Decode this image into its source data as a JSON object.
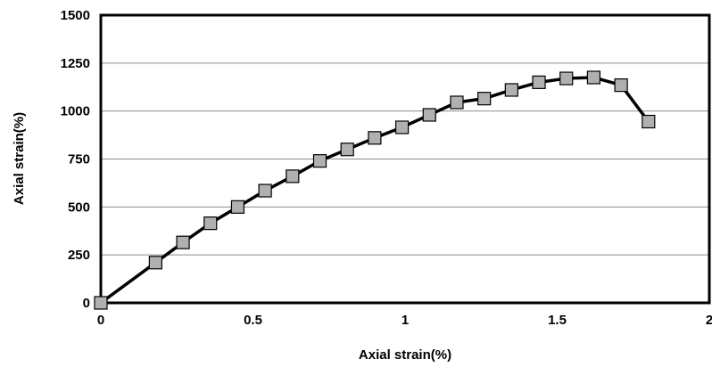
{
  "chart_data": {
    "type": "line",
    "title": "",
    "xlabel": "Axial strain(%)",
    "ylabel": "Axial strain(%)",
    "xlim": [
      0,
      2
    ],
    "ylim": [
      0,
      1500
    ],
    "x_ticks": [
      0,
      0.5,
      1,
      1.5,
      2
    ],
    "x_tick_labels": [
      "0",
      "0.5",
      "1",
      "1.5",
      "2"
    ],
    "y_ticks": [
      0,
      250,
      500,
      750,
      1000,
      1250,
      1500
    ],
    "y_tick_labels": [
      "0",
      "250",
      "500",
      "750",
      "1000",
      "1250",
      "1500"
    ],
    "grid": "horizontal",
    "legend": "none",
    "series": [
      {
        "color": "#000000",
        "marker": "square",
        "marker_fill": "#b0b0b0",
        "x": [
          0,
          0.18,
          0.27,
          0.36,
          0.45,
          0.54,
          0.63,
          0.72,
          0.81,
          0.9,
          0.99,
          1.08,
          1.17,
          1.26,
          1.35,
          1.44,
          1.53,
          1.62,
          1.71,
          1.8
        ],
        "y": [
          0,
          210,
          315,
          415,
          500,
          585,
          660,
          740,
          800,
          860,
          915,
          980,
          1045,
          1065,
          1110,
          1150,
          1170,
          1175,
          1135,
          945
        ]
      }
    ]
  }
}
